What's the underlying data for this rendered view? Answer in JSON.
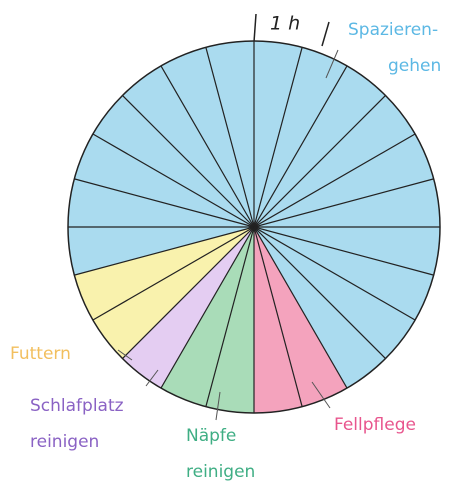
{
  "chart_data": {
    "type": "pie",
    "annotation": "1 h",
    "categories": [
      [
        "Fellpflege"
      ],
      [
        "Näpfe",
        "reinigen"
      ],
      [
        "Schlafplatz",
        "reinigen"
      ],
      [
        "Futtern"
      ],
      [
        "Spazieren-",
        "gehen"
      ]
    ],
    "values": [
      2,
      2,
      1,
      2,
      17
    ],
    "colors": [
      "#f4a3bd",
      "#a9dcb8",
      "#e4cdf2",
      "#f9f2ad",
      "#aadbef"
    ],
    "label_colors": [
      "#e8558d",
      "#3fae84",
      "#8a62c4",
      "#f2bf5e",
      "#5cb8e4"
    ]
  }
}
